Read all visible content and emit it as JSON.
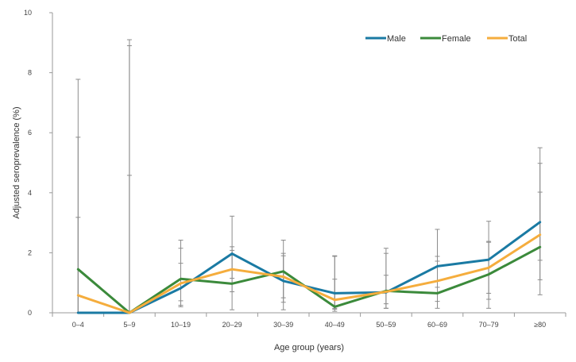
{
  "chart_data": {
    "type": "line",
    "title": "",
    "xlabel": "Age group (years)",
    "ylabel": "Adjusted seroprevalence (%)",
    "ylim": [
      0,
      10
    ],
    "yticks": [
      "0",
      "2",
      "4",
      "6",
      "8",
      "10"
    ],
    "categories": [
      "0–4",
      "5–9",
      "10–19",
      "20–29",
      "30–39",
      "40–49",
      "50–59",
      "60–69",
      "70–79",
      "≥80"
    ],
    "grid": false,
    "legend_position": "top-right",
    "series": [
      {
        "name": "Male",
        "color": "#1a7aa3",
        "values": [
          0.0,
          0.0,
          0.82,
          1.97,
          1.06,
          0.65,
          0.68,
          1.55,
          1.77,
          3.02
        ],
        "ci_low": [
          0.0,
          0.0,
          0.25,
          1.15,
          0.35,
          0.15,
          0.15,
          0.85,
          0.65,
          1.75
        ],
        "ci_high": [
          5.85,
          8.9,
          2.15,
          3.22,
          2.42,
          1.9,
          2.15,
          2.78,
          3.05,
          4.98
        ]
      },
      {
        "name": "Female",
        "color": "#3b8a3b",
        "values": [
          1.45,
          0.0,
          1.13,
          0.97,
          1.38,
          0.2,
          0.73,
          0.65,
          1.28,
          2.19
        ],
        "ci_low": [
          0.0,
          0.0,
          0.2,
          0.1,
          0.1,
          0.05,
          0.15,
          0.15,
          0.15,
          0.6
        ],
        "ci_high": [
          7.78,
          4.58,
          2.42,
          2.2,
          1.98,
          1.88,
          1.98,
          1.88,
          2.35,
          4.02
        ]
      },
      {
        "name": "Total",
        "color": "#f5ad3d",
        "values": [
          0.58,
          0.0,
          0.98,
          1.45,
          1.2,
          0.43,
          0.7,
          1.06,
          1.5,
          2.6
        ],
        "ci_low": [
          0.0,
          0.0,
          0.4,
          0.7,
          0.5,
          0.12,
          0.3,
          0.38,
          0.45,
          1.1
        ],
        "ci_high": [
          3.18,
          9.1,
          1.65,
          2.08,
          1.9,
          1.12,
          1.25,
          1.72,
          2.38,
          5.5
        ]
      }
    ]
  }
}
